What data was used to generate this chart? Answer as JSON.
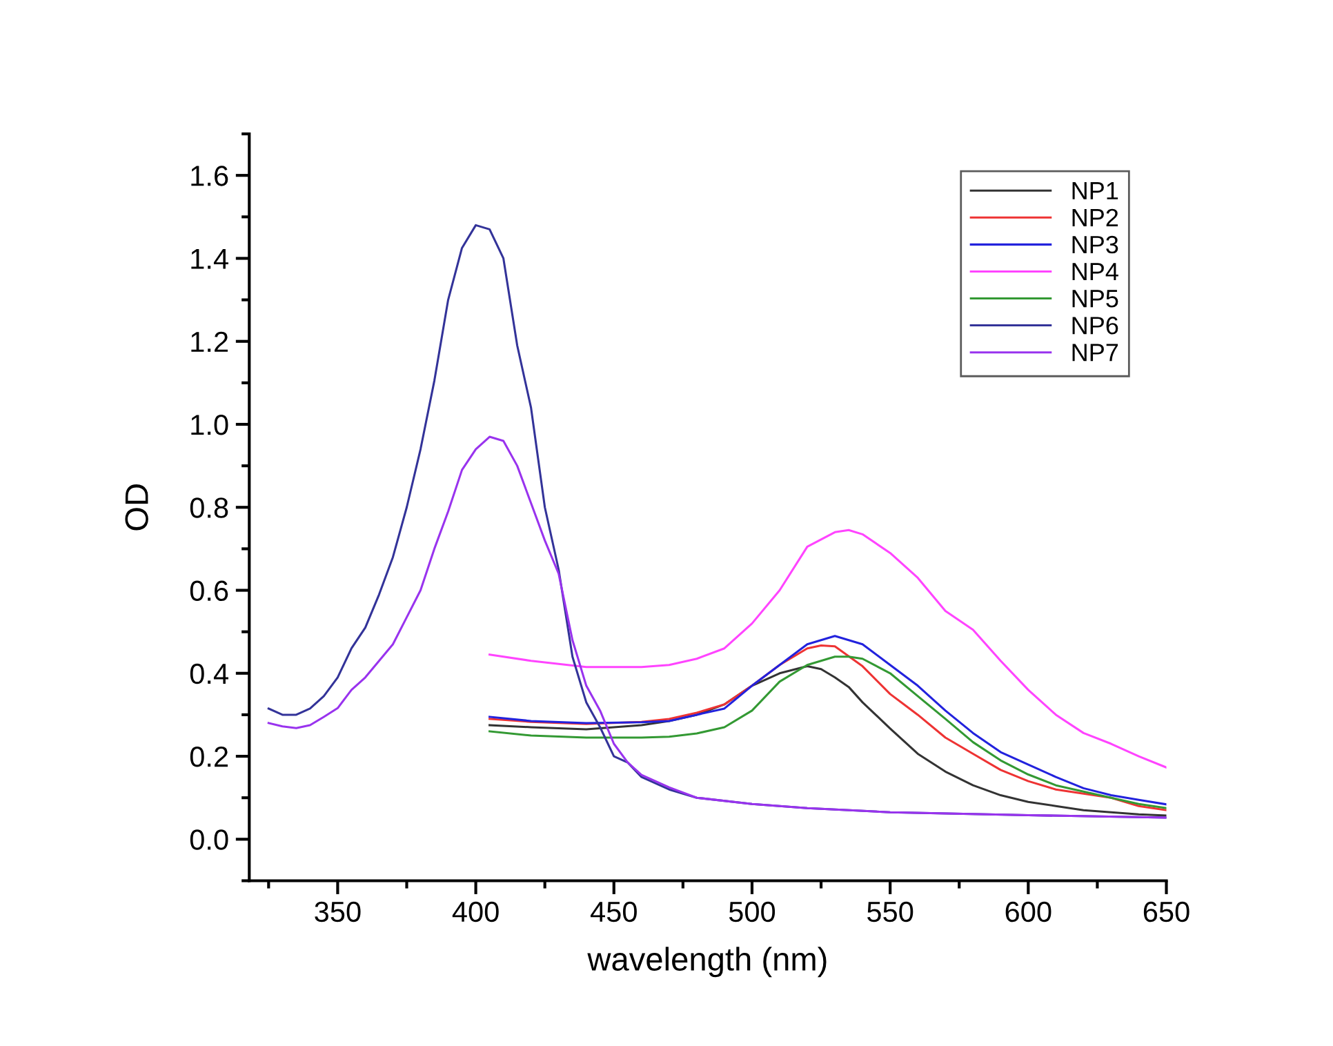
{
  "chart_data": {
    "type": "line",
    "xlabel": "wavelength (nm)",
    "ylabel": "OD",
    "xlim": [
      318,
      650
    ],
    "ylim": [
      -0.1,
      1.7
    ],
    "xticks": [
      {
        "value": 325,
        "label": null
      },
      350,
      {
        "value": 375,
        "label": null
      },
      400,
      {
        "value": 425,
        "label": null
      },
      450,
      {
        "value": 475,
        "label": null
      },
      500,
      {
        "value": 525,
        "label": null
      },
      550,
      {
        "value": 575,
        "label": null
      },
      600,
      {
        "value": 625,
        "label": null
      },
      650
    ],
    "yticks": [
      {
        "value": -0.1,
        "label": null
      },
      {
        "value": 0,
        "label": "0.0"
      },
      {
        "value": 0.1,
        "label": null
      },
      {
        "value": 0.2,
        "label": "0.2"
      },
      {
        "value": 0.3,
        "label": null
      },
      {
        "value": 0.4,
        "label": "0.4"
      },
      {
        "value": 0.5,
        "label": null
      },
      {
        "value": 0.6,
        "label": "0.6"
      },
      {
        "value": 0.7,
        "label": null
      },
      {
        "value": 0.8,
        "label": "0.8"
      },
      {
        "value": 0.9,
        "label": null
      },
      {
        "value": 1.0,
        "label": "1.0"
      },
      {
        "value": 1.1,
        "label": null
      },
      {
        "value": 1.2,
        "label": "1.2"
      },
      {
        "value": 1.3,
        "label": null
      },
      {
        "value": 1.4,
        "label": "1.4"
      },
      {
        "value": 1.5,
        "label": null
      },
      {
        "value": 1.6,
        "label": "1.6"
      },
      {
        "value": 1.7,
        "label": null
      }
    ],
    "grid": false,
    "legend": "top right",
    "marker": "none",
    "line_style": "solid",
    "series": [
      {
        "name": "NP1",
        "color": "#333333",
        "x": [
          405,
          420,
          440,
          460,
          470,
          480,
          490,
          500,
          510,
          520,
          525,
          530,
          535,
          540,
          550,
          560,
          570,
          580,
          590,
          600,
          610,
          620,
          630,
          640,
          650
        ],
        "values": [
          0.275,
          0.27,
          0.265,
          0.275,
          0.285,
          0.3,
          0.325,
          0.37,
          0.4,
          0.417,
          0.41,
          0.39,
          0.367,
          0.33,
          0.267,
          0.206,
          0.163,
          0.13,
          0.106,
          0.09,
          0.08,
          0.07,
          0.065,
          0.06,
          0.057
        ]
      },
      {
        "name": "NP2",
        "color": "#ee3333",
        "x": [
          405,
          420,
          440,
          460,
          470,
          480,
          490,
          500,
          510,
          520,
          525,
          530,
          540,
          550,
          560,
          570,
          580,
          590,
          600,
          610,
          620,
          630,
          640,
          650
        ],
        "values": [
          0.29,
          0.283,
          0.278,
          0.283,
          0.29,
          0.305,
          0.325,
          0.37,
          0.42,
          0.46,
          0.467,
          0.465,
          0.417,
          0.35,
          0.3,
          0.245,
          0.206,
          0.167,
          0.14,
          0.12,
          0.11,
          0.1,
          0.08,
          0.07
        ]
      },
      {
        "name": "NP3",
        "color": "#2222dd",
        "x": [
          405,
          420,
          440,
          460,
          470,
          480,
          490,
          500,
          510,
          520,
          530,
          540,
          550,
          560,
          570,
          580,
          590,
          600,
          610,
          620,
          630,
          640,
          650
        ],
        "values": [
          0.295,
          0.285,
          0.28,
          0.282,
          0.285,
          0.3,
          0.315,
          0.37,
          0.42,
          0.47,
          0.49,
          0.47,
          0.42,
          0.37,
          0.31,
          0.256,
          0.21,
          0.18,
          0.15,
          0.123,
          0.106,
          0.095,
          0.084
        ]
      },
      {
        "name": "NP4",
        "color": "#ff44ff",
        "x": [
          405,
          420,
          440,
          460,
          470,
          480,
          490,
          500,
          510,
          520,
          530,
          535,
          540,
          550,
          560,
          570,
          580,
          590,
          600,
          610,
          620,
          630,
          640,
          650
        ],
        "values": [
          0.445,
          0.43,
          0.415,
          0.415,
          0.42,
          0.435,
          0.46,
          0.52,
          0.6,
          0.705,
          0.74,
          0.745,
          0.735,
          0.69,
          0.63,
          0.55,
          0.505,
          0.43,
          0.36,
          0.3,
          0.256,
          0.23,
          0.2,
          0.173
        ]
      },
      {
        "name": "NP5",
        "color": "#339933",
        "x": [
          405,
          420,
          440,
          460,
          470,
          480,
          490,
          500,
          510,
          520,
          530,
          535,
          540,
          550,
          560,
          570,
          580,
          590,
          600,
          610,
          620,
          630,
          640,
          650
        ],
        "values": [
          0.26,
          0.25,
          0.245,
          0.245,
          0.247,
          0.255,
          0.27,
          0.31,
          0.38,
          0.42,
          0.44,
          0.44,
          0.435,
          0.4,
          0.345,
          0.29,
          0.234,
          0.19,
          0.156,
          0.13,
          0.115,
          0.1,
          0.085,
          0.075
        ]
      },
      {
        "name": "NP6",
        "color": "#333399",
        "x": [
          325,
          330,
          335,
          340,
          345,
          350,
          355,
          360,
          365,
          370,
          375,
          380,
          385,
          390,
          395,
          400,
          405,
          410,
          415,
          420,
          425,
          430,
          435,
          440,
          445,
          450,
          455,
          460,
          470,
          480,
          500,
          520,
          550,
          600,
          650
        ],
        "values": [
          0.315,
          0.3,
          0.3,
          0.315,
          0.345,
          0.39,
          0.46,
          0.51,
          0.59,
          0.68,
          0.8,
          0.94,
          1.105,
          1.3,
          1.425,
          1.48,
          1.47,
          1.4,
          1.19,
          1.04,
          0.8,
          0.65,
          0.44,
          0.33,
          0.27,
          0.2,
          0.185,
          0.15,
          0.12,
          0.1,
          0.085,
          0.075,
          0.065,
          0.058,
          0.052
        ]
      },
      {
        "name": "NP7",
        "color": "#9933ee",
        "x": [
          325,
          330,
          335,
          340,
          345,
          350,
          355,
          360,
          365,
          370,
          375,
          380,
          385,
          390,
          395,
          400,
          405,
          410,
          415,
          420,
          425,
          430,
          435,
          440,
          445,
          450,
          455,
          460,
          470,
          480,
          500,
          520,
          550,
          600,
          650
        ],
        "values": [
          0.28,
          0.272,
          0.268,
          0.275,
          0.295,
          0.316,
          0.36,
          0.39,
          0.43,
          0.47,
          0.535,
          0.6,
          0.7,
          0.79,
          0.89,
          0.94,
          0.97,
          0.96,
          0.9,
          0.81,
          0.72,
          0.64,
          0.48,
          0.37,
          0.31,
          0.23,
          0.185,
          0.155,
          0.125,
          0.1,
          0.085,
          0.075,
          0.065,
          0.058,
          0.052
        ]
      }
    ]
  }
}
